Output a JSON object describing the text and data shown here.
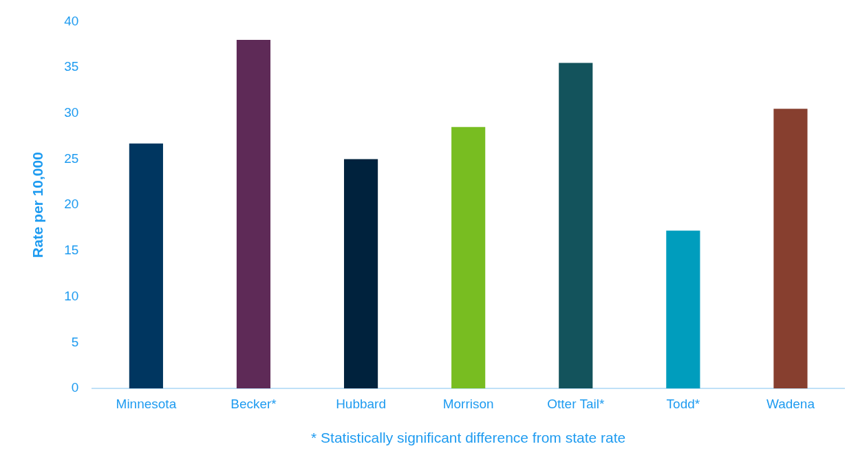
{
  "chart_data": {
    "type": "bar",
    "xlabel": "* Statistically significant difference from state rate",
    "ylabel": "Rate per 10,000",
    "categories": [
      "Minnesota",
      "Becker*",
      "Hubbard",
      "Morrison",
      "Otter Tail*",
      "Todd*",
      "Wadena"
    ],
    "values": [
      26.7,
      38.0,
      25.0,
      28.5,
      35.5,
      17.2,
      30.5
    ],
    "colors": [
      "#003660",
      "#5e2a57",
      "#00223d",
      "#78bd21",
      "#13535c",
      "#009dbd",
      "#873f2f"
    ],
    "ylim": [
      0,
      40
    ],
    "yticks": [
      0,
      5,
      10,
      15,
      20,
      25,
      30,
      35,
      40
    ],
    "grid": false,
    "legend": false
  }
}
